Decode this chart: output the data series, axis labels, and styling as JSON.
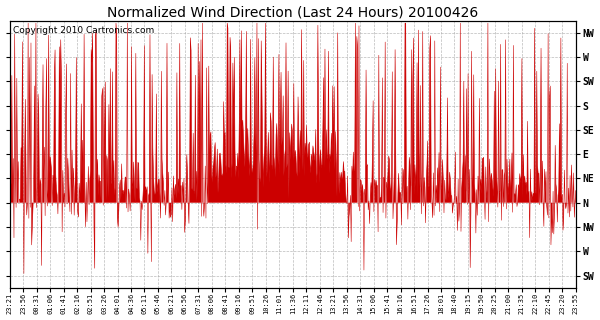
{
  "title": "Normalized Wind Direction (Last 24 Hours) 20100426",
  "copyright": "Copyright 2010 Cartronics.com",
  "line_color": "#cc0000",
  "bg_color": "#ffffff",
  "plot_bg_color": "#ffffff",
  "grid_color": "#aaaaaa",
  "ytick_labels": [
    "NW",
    "W",
    "SW",
    "S",
    "SE",
    "E",
    "NE",
    "N",
    "NW",
    "W",
    "SW"
  ],
  "ytick_values": [
    10,
    9,
    8,
    7,
    6,
    5,
    4,
    3,
    2,
    1,
    0
  ],
  "ylim": [
    -0.5,
    10.5
  ],
  "xtick_labels": [
    "23:21",
    "23:56",
    "00:31",
    "01:06",
    "01:41",
    "02:16",
    "02:51",
    "03:26",
    "04:01",
    "04:36",
    "05:11",
    "05:46",
    "06:21",
    "06:56",
    "07:31",
    "08:06",
    "08:41",
    "09:16",
    "09:51",
    "10:26",
    "11:01",
    "11:36",
    "12:11",
    "12:46",
    "13:21",
    "13:56",
    "14:31",
    "15:06",
    "15:41",
    "16:16",
    "16:51",
    "17:26",
    "18:01",
    "18:40",
    "19:15",
    "19:50",
    "20:25",
    "21:00",
    "21:35",
    "22:10",
    "22:45",
    "23:20",
    "23:55"
  ],
  "figsize": [
    6.0,
    3.2
  ],
  "dpi": 100
}
